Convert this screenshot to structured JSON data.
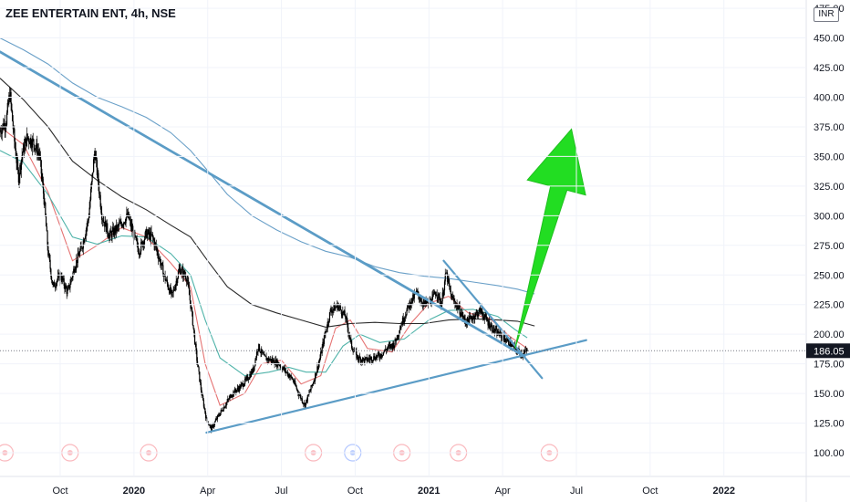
{
  "header": {
    "title": "ZEE ENTERTAIN ENT, 4h, NSE",
    "currency": "INR"
  },
  "colors": {
    "candle": "#000000",
    "trendline": "#5b9cc6",
    "ma_fast": "#e57373",
    "ma_mid": "#4fb3a9",
    "ma_slow": "#2b2b2b",
    "ma_long": "#6aa0c8",
    "arrow": "#22dd22",
    "price_label_bg": "#131722",
    "event_red": "#f23645",
    "event_blue": "#2962ff"
  },
  "chart_data": {
    "type": "candlestick",
    "symbol": "ZEE ENTERTAIN ENT",
    "interval": "4h",
    "exchange": "NSE",
    "currency": "INR",
    "y_ticks": [
      "475.00",
      "450.00",
      "425.00",
      "400.00",
      "375.00",
      "350.00",
      "325.00",
      "300.00",
      "275.00",
      "250.00",
      "225.00",
      "200.00",
      "175.00",
      "150.00",
      "125.00",
      "100.00"
    ],
    "ylim": [
      80,
      482
    ],
    "last_price": "186.05",
    "x_ticks": [
      {
        "label": "Oct",
        "x": 0.0,
        "bold": false
      },
      {
        "label": "2020",
        "x": 3.0,
        "bold": true
      },
      {
        "label": "Apr",
        "x": 6.0,
        "bold": false
      },
      {
        "label": "Jul",
        "x": 9.0,
        "bold": false
      },
      {
        "label": "Oct",
        "x": 12.0,
        "bold": false
      },
      {
        "label": "2021",
        "x": 15.0,
        "bold": true
      },
      {
        "label": "Apr",
        "x": 18.0,
        "bold": false
      },
      {
        "label": "Jul",
        "x": 21.0,
        "bold": false
      },
      {
        "label": "Oct",
        "x": 24.0,
        "bold": false
      },
      {
        "label": "2022",
        "x": 27.0,
        "bold": true
      }
    ],
    "xlim": [
      -2.45,
      30.35
    ],
    "price_path": [
      [
        -2.45,
        372
      ],
      [
        -2.2,
        380
      ],
      [
        -2.05,
        404
      ],
      [
        -1.9,
        370
      ],
      [
        -1.7,
        332
      ],
      [
        -1.55,
        352
      ],
      [
        -1.35,
        366
      ],
      [
        -1.1,
        362
      ],
      [
        -0.85,
        352
      ],
      [
        -0.65,
        312
      ],
      [
        -0.5,
        270
      ],
      [
        -0.3,
        240
      ],
      [
        0.0,
        250
      ],
      [
        0.3,
        235
      ],
      [
        0.6,
        258
      ],
      [
        0.9,
        275
      ],
      [
        1.15,
        298
      ],
      [
        1.4,
        355
      ],
      [
        1.7,
        300
      ],
      [
        2.0,
        283
      ],
      [
        2.35,
        290
      ],
      [
        2.75,
        300
      ],
      [
        3.0,
        283
      ],
      [
        3.2,
        270
      ],
      [
        3.5,
        285
      ],
      [
        3.75,
        282
      ],
      [
        4.0,
        266
      ],
      [
        4.25,
        248
      ],
      [
        4.55,
        232
      ],
      [
        4.85,
        255
      ],
      [
        5.15,
        248
      ],
      [
        5.35,
        218
      ],
      [
        5.55,
        180
      ],
      [
        5.75,
        150
      ],
      [
        5.95,
        128
      ],
      [
        6.15,
        120
      ],
      [
        6.4,
        130
      ],
      [
        6.7,
        140
      ],
      [
        7.0,
        150
      ],
      [
        7.3,
        155
      ],
      [
        7.6,
        162
      ],
      [
        7.85,
        170
      ],
      [
        8.05,
        190
      ],
      [
        8.3,
        180
      ],
      [
        8.6,
        178
      ],
      [
        8.9,
        175
      ],
      [
        9.2,
        168
      ],
      [
        9.45,
        162
      ],
      [
        9.7,
        150
      ],
      [
        9.95,
        140
      ],
      [
        10.3,
        160
      ],
      [
        10.55,
        178
      ],
      [
        10.75,
        198
      ],
      [
        11.0,
        220
      ],
      [
        11.3,
        224
      ],
      [
        11.6,
        215
      ],
      [
        11.85,
        190
      ],
      [
        12.1,
        180
      ],
      [
        12.4,
        178
      ],
      [
        12.7,
        180
      ],
      [
        13.0,
        182
      ],
      [
        13.3,
        188
      ],
      [
        13.6,
        192
      ],
      [
        13.9,
        210
      ],
      [
        14.2,
        225
      ],
      [
        14.5,
        235
      ],
      [
        14.8,
        225
      ],
      [
        15.1,
        228
      ],
      [
        15.3,
        236
      ],
      [
        15.5,
        225
      ],
      [
        15.7,
        252
      ],
      [
        15.9,
        232
      ],
      [
        16.2,
        222
      ],
      [
        16.5,
        210
      ],
      [
        16.8,
        215
      ],
      [
        17.1,
        220
      ],
      [
        17.4,
        210
      ],
      [
        17.7,
        202
      ],
      [
        18.0,
        198
      ],
      [
        18.3,
        192
      ],
      [
        18.6,
        186
      ],
      [
        18.8,
        183
      ],
      [
        19.0,
        186.05
      ]
    ],
    "moving_averages": [
      {
        "color_key": "ma_fast",
        "points": [
          [
            -2.45,
            375
          ],
          [
            -1.5,
            360
          ],
          [
            -0.5,
            320
          ],
          [
            0.5,
            262
          ],
          [
            1.5,
            275
          ],
          [
            2.5,
            290
          ],
          [
            3.5,
            282
          ],
          [
            4.5,
            260
          ],
          [
            5.3,
            240
          ],
          [
            5.9,
            175
          ],
          [
            6.5,
            140
          ],
          [
            7.5,
            150
          ],
          [
            8.2,
            175
          ],
          [
            9.0,
            178
          ],
          [
            9.8,
            158
          ],
          [
            10.6,
            165
          ],
          [
            11.2,
            205
          ],
          [
            11.8,
            212
          ],
          [
            12.5,
            188
          ],
          [
            13.5,
            185
          ],
          [
            14.3,
            210
          ],
          [
            15.0,
            226
          ],
          [
            15.8,
            232
          ],
          [
            16.6,
            218
          ],
          [
            17.5,
            213
          ],
          [
            18.3,
            198
          ],
          [
            19.0,
            188
          ]
        ]
      },
      {
        "color_key": "ma_mid",
        "points": [
          [
            -2.45,
            355
          ],
          [
            -1.5,
            345
          ],
          [
            -0.5,
            318
          ],
          [
            0.5,
            282
          ],
          [
            1.5,
            276
          ],
          [
            2.5,
            283
          ],
          [
            3.5,
            282
          ],
          [
            4.5,
            268
          ],
          [
            5.3,
            250
          ],
          [
            5.9,
            212
          ],
          [
            6.5,
            180
          ],
          [
            7.5,
            165
          ],
          [
            8.5,
            168
          ],
          [
            9.3,
            172
          ],
          [
            10.0,
            168
          ],
          [
            10.8,
            168
          ],
          [
            11.5,
            190
          ],
          [
            12.2,
            200
          ],
          [
            13.0,
            193
          ],
          [
            14.0,
            196
          ],
          [
            15.0,
            212
          ],
          [
            15.8,
            220
          ],
          [
            16.8,
            221
          ],
          [
            17.8,
            215
          ],
          [
            18.5,
            204
          ],
          [
            19.0,
            197
          ]
        ]
      },
      {
        "color_key": "ma_slow",
        "points": [
          [
            -2.45,
            416
          ],
          [
            -1.5,
            398
          ],
          [
            -0.5,
            375
          ],
          [
            0.5,
            346
          ],
          [
            1.5,
            330
          ],
          [
            2.5,
            316
          ],
          [
            3.5,
            305
          ],
          [
            4.5,
            292
          ],
          [
            5.3,
            282
          ],
          [
            6.0,
            262
          ],
          [
            6.8,
            240
          ],
          [
            7.8,
            225
          ],
          [
            8.8,
            218
          ],
          [
            9.8,
            212
          ],
          [
            10.8,
            206
          ],
          [
            11.8,
            209
          ],
          [
            12.8,
            210
          ],
          [
            13.8,
            209
          ],
          [
            14.8,
            209
          ],
          [
            15.8,
            212
          ],
          [
            16.8,
            213
          ],
          [
            17.8,
            212
          ],
          [
            18.6,
            211
          ],
          [
            19.3,
            207
          ]
        ]
      },
      {
        "color_key": "ma_long",
        "points": [
          [
            -2.45,
            450
          ],
          [
            -1.5,
            440
          ],
          [
            -0.5,
            428
          ],
          [
            0.5,
            412
          ],
          [
            1.5,
            400
          ],
          [
            2.5,
            392
          ],
          [
            3.5,
            383
          ],
          [
            4.5,
            370
          ],
          [
            5.3,
            355
          ],
          [
            6.0,
            338
          ],
          [
            6.8,
            318
          ],
          [
            7.8,
            300
          ],
          [
            8.8,
            288
          ],
          [
            9.8,
            278
          ],
          [
            10.8,
            270
          ],
          [
            11.8,
            265
          ],
          [
            12.8,
            257
          ],
          [
            13.8,
            252
          ],
          [
            14.8,
            249
          ],
          [
            15.8,
            247
          ],
          [
            16.8,
            244
          ],
          [
            17.8,
            241
          ],
          [
            18.6,
            238
          ],
          [
            19.3,
            234
          ]
        ]
      }
    ],
    "trendlines": [
      {
        "points": [
          [
            -2.45,
            438
          ],
          [
            18.9,
            181
          ]
        ]
      },
      {
        "points": [
          [
            -2.45,
            438.5
          ],
          [
            18.9,
            181.5
          ]
        ]
      },
      {
        "points": [
          [
            5.95,
            117
          ],
          [
            21.4,
            195
          ]
        ]
      },
      {
        "points": [
          [
            15.6,
            262
          ],
          [
            19.6,
            163
          ]
        ]
      }
    ],
    "arrow": {
      "from": [
        18.5,
        188
      ],
      "to": [
        20.8,
        373
      ]
    },
    "events": [
      {
        "x": -2.25,
        "y": 100,
        "kind": "red"
      },
      {
        "x": 0.4,
        "y": 100,
        "kind": "red"
      },
      {
        "x": 3.6,
        "y": 100,
        "kind": "red"
      },
      {
        "x": 10.3,
        "y": 100,
        "kind": "red"
      },
      {
        "x": 11.9,
        "y": 100,
        "kind": "blue"
      },
      {
        "x": 13.9,
        "y": 100,
        "kind": "red"
      },
      {
        "x": 16.2,
        "y": 100,
        "kind": "red"
      },
      {
        "x": 19.9,
        "y": 100,
        "kind": "red"
      }
    ]
  }
}
